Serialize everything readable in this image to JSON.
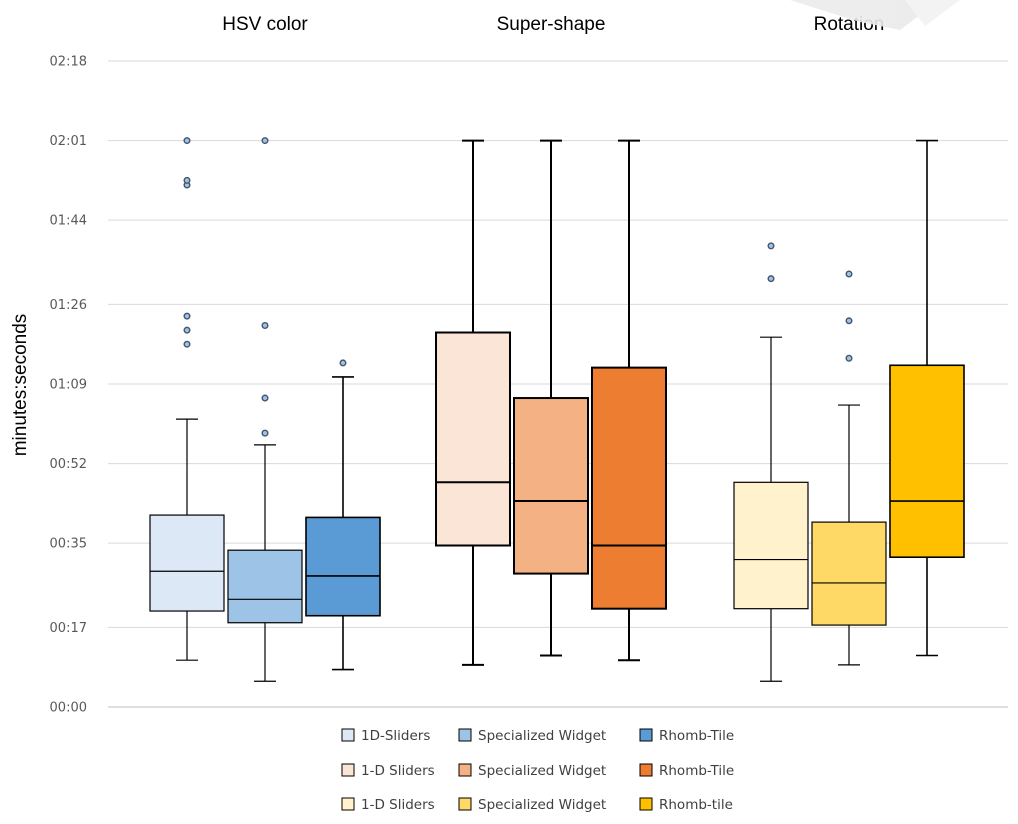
{
  "chart_data": {
    "type": "box",
    "ylabel": "minutes:seconds",
    "y_unit": "seconds",
    "y_ticks": [
      {
        "value": 0,
        "label": "00:00"
      },
      {
        "value": 17,
        "label": "00:17"
      },
      {
        "value": 35,
        "label": "00:35"
      },
      {
        "value": 52,
        "label": "00:52"
      },
      {
        "value": 69,
        "label": "01:09"
      },
      {
        "value": 86,
        "label": "01:26"
      },
      {
        "value": 104,
        "label": "01:44"
      },
      {
        "value": 121,
        "label": "02:01"
      },
      {
        "value": 138,
        "label": "02:18"
      }
    ],
    "ylim": [
      0,
      138
    ],
    "grid": true,
    "legend_position": "bottom",
    "groups": [
      {
        "title": "HSV color",
        "series": [
          {
            "name": "1D-Sliders",
            "color": "#DCE8F5",
            "whisker_low": 10,
            "q1": 20.5,
            "median": 29,
            "q3": 41,
            "whisker_high": 61.5,
            "outliers": [
              77.5,
              80.5,
              83.5,
              111.5,
              112.5,
              121
            ]
          },
          {
            "name": "Specialized Widget",
            "color": "#9DC3E6",
            "whisker_low": 5.5,
            "q1": 18,
            "median": 23,
            "q3": 33.5,
            "whisker_high": 56,
            "outliers": [
              58.5,
              66,
              81.5,
              121
            ]
          },
          {
            "name": "Rhomb-Tile",
            "color": "#5B9BD5",
            "whisker_low": 8,
            "q1": 19.5,
            "median": 28,
            "q3": 40.5,
            "whisker_high": 70.5,
            "outliers": [
              73.5
            ]
          }
        ]
      },
      {
        "title": "Super-shape",
        "series": [
          {
            "name": "1-D Sliders",
            "color": "#FBE5D6",
            "whisker_low": 9,
            "q1": 34.5,
            "median": 48,
            "q3": 80,
            "whisker_high": 121,
            "outliers": []
          },
          {
            "name": "Specialized Widget",
            "color": "#F4B183",
            "whisker_low": 11,
            "q1": 28.5,
            "median": 44,
            "q3": 66,
            "whisker_high": 121,
            "outliers": []
          },
          {
            "name": "Rhomb-Tile",
            "color": "#ED7D31",
            "whisker_low": 10,
            "q1": 21,
            "median": 34.5,
            "q3": 72.5,
            "whisker_high": 121,
            "outliers": []
          }
        ]
      },
      {
        "title": "Rotation",
        "series": [
          {
            "name": "1-D Sliders",
            "color": "#FFF2CC",
            "whisker_low": 5.5,
            "q1": 21,
            "median": 31.5,
            "q3": 48,
            "whisker_high": 79,
            "outliers": [
              91.5,
              98.5
            ]
          },
          {
            "name": "Specialized Widget",
            "color": "#FFD966",
            "whisker_low": 9,
            "q1": 17.5,
            "median": 26.5,
            "q3": 39.5,
            "whisker_high": 64.5,
            "outliers": [
              74.5,
              82.5,
              92.5
            ]
          },
          {
            "name": "Rhomb-tile",
            "color": "#FFC000",
            "whisker_low": 11,
            "q1": 32,
            "median": 44,
            "q3": 73,
            "whisker_high": 121,
            "outliers": []
          }
        ]
      }
    ]
  }
}
